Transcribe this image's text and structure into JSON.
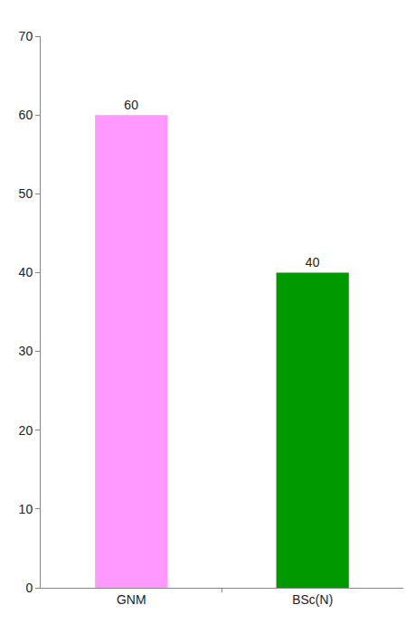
{
  "chart_data": {
    "type": "bar",
    "categories": [
      "GNM",
      "BSc(N)"
    ],
    "values": [
      60,
      40
    ],
    "colors": [
      "#ff99ff",
      "#009900"
    ],
    "ylim": [
      0,
      70
    ],
    "yticks": [
      0,
      10,
      20,
      30,
      40,
      50,
      60,
      70
    ],
    "grid": false,
    "data_labels": true
  }
}
